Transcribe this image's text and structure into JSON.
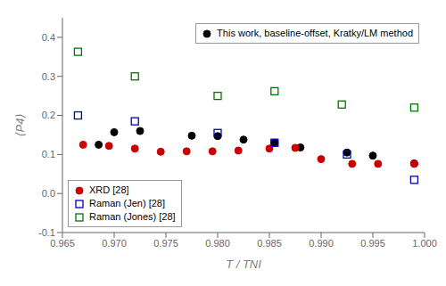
{
  "chart_data": {
    "type": "scatter",
    "xlabel": "T / TNI",
    "ylabel": "⟨P4⟩",
    "xlim": [
      0.965,
      1.0
    ],
    "ylim": [
      -0.1,
      0.45
    ],
    "xticks": [
      0.965,
      {
        "value": 0.97,
        "label": "0.970"
      },
      0.975,
      {
        "value": 0.98,
        "label": "0.980"
      },
      0.985,
      {
        "value": 0.99,
        "label": "0.990"
      },
      0.995,
      {
        "value": 1.0,
        "label": "1.000"
      }
    ],
    "yticks": [
      -0.1,
      {
        "value": 0.0,
        "label": "0.0"
      },
      0.1,
      0.2,
      0.3,
      0.4
    ],
    "grid": false,
    "series": [
      {
        "name": "This work, baseline-offset, Kratky/LM method",
        "color": "#000000",
        "marker": "circle",
        "legend": "upper right",
        "x": [
          0.9685,
          0.97,
          0.9725,
          0.9775,
          0.98,
          0.9825,
          0.9855,
          0.988,
          0.9925,
          0.995,
          0.999
        ],
        "values": [
          0.125,
          0.157,
          0.16,
          0.148,
          0.147,
          0.138,
          0.13,
          0.118,
          0.105,
          0.097,
          0.077
        ]
      },
      {
        "name": "XRD [28]",
        "color": "#cc0000",
        "marker": "circle",
        "legend": "lower left",
        "x": [
          0.967,
          0.9695,
          0.972,
          0.9745,
          0.977,
          0.9795,
          0.982,
          0.985,
          0.9875,
          0.99,
          0.993,
          0.9955,
          0.999
        ],
        "values": [
          0.125,
          0.122,
          0.115,
          0.107,
          0.108,
          0.108,
          0.11,
          0.115,
          0.117,
          0.088,
          0.076,
          0.076,
          0.076
        ]
      },
      {
        "name": "Raman (Jen) [28]",
        "color": "#0000bb",
        "marker": "open_square",
        "legend": "lower left",
        "x": [
          0.9665,
          0.972,
          0.98,
          0.9855,
          0.9925,
          0.999
        ],
        "values": [
          0.2,
          0.185,
          0.155,
          0.13,
          0.1,
          0.035
        ]
      },
      {
        "name": "Raman (Jones) [28]",
        "color": "#007700",
        "marker": "open_square",
        "legend": "lower left",
        "x": [
          0.9665,
          0.972,
          0.98,
          0.9855,
          0.992,
          0.999
        ],
        "values": [
          0.363,
          0.3,
          0.25,
          0.262,
          0.228,
          0.22
        ]
      }
    ]
  }
}
